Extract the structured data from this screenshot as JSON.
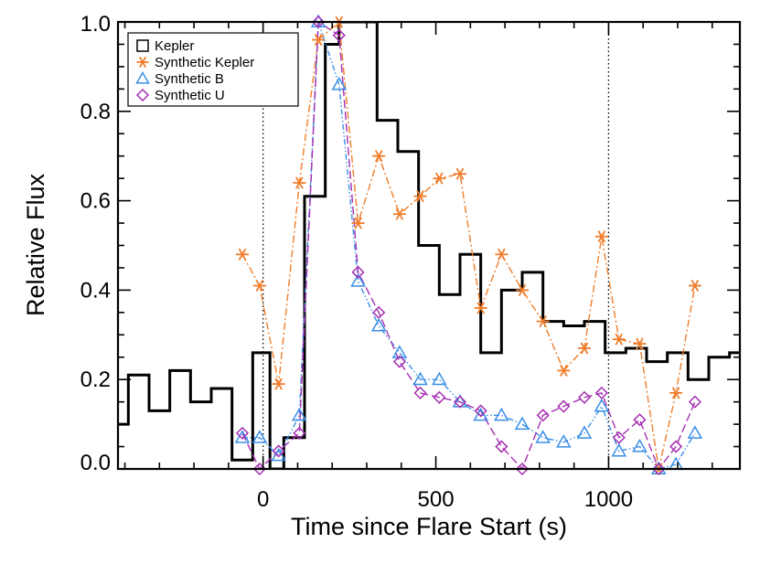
{
  "chart_data": {
    "type": "line",
    "title": "",
    "xlabel": "Time since Flare Start (s)",
    "ylabel": "Relative Flux",
    "xlim": [
      -420,
      1380
    ],
    "ylim": [
      0.0,
      1.0
    ],
    "x_ticks": [
      0,
      500,
      1000
    ],
    "x_tick_labels": [
      "0",
      "500",
      "1000"
    ],
    "y_ticks": [
      0.0,
      0.2,
      0.4,
      0.6,
      0.8,
      1.0
    ],
    "y_tick_labels": [
      "0.0",
      "0.2",
      "0.4",
      "0.6",
      "0.8",
      "1.0"
    ],
    "vertical_reference_lines": [
      0,
      1000
    ],
    "legend_position": "top-left",
    "colors": {
      "kepler": "#000000",
      "synthetic_kepler": "#f07d2a",
      "synthetic_b": "#3a8fe8",
      "synthetic_u": "#a52fb2",
      "reference_line": "#000000"
    },
    "series": [
      {
        "name": "Kepler",
        "style": "step",
        "bin_edges": [
          -420,
          -390,
          -330,
          -270,
          -210,
          -150,
          -90,
          -30,
          0,
          20,
          60,
          120,
          180,
          220,
          270,
          330,
          390,
          450,
          510,
          570,
          630,
          690,
          750,
          810,
          870,
          930,
          990,
          1050,
          1110,
          1170,
          1230,
          1290,
          1350,
          1380
        ],
        "values": [
          0.1,
          0.21,
          0.13,
          0.22,
          0.15,
          0.18,
          0.02,
          0.26,
          0.26,
          0.0,
          0.07,
          0.61,
          0.95,
          1.0,
          1.0,
          0.78,
          0.71,
          0.5,
          0.39,
          0.48,
          0.26,
          0.4,
          0.44,
          0.33,
          0.32,
          0.33,
          0.26,
          0.27,
          0.24,
          0.26,
          0.2,
          0.25,
          0.26
        ]
      },
      {
        "name": "Synthetic Kepler",
        "marker": "asterisk",
        "line": "dash-dot",
        "x": [
          -60,
          -10,
          45,
          105,
          160,
          220,
          275,
          335,
          395,
          455,
          510,
          570,
          630,
          690,
          750,
          810,
          870,
          930,
          980,
          1030,
          1090,
          1145,
          1195,
          1250
        ],
        "values": [
          0.48,
          0.41,
          0.19,
          0.64,
          0.96,
          1.0,
          0.55,
          0.7,
          0.57,
          0.61,
          0.65,
          0.66,
          0.36,
          0.48,
          0.4,
          0.33,
          0.22,
          0.27,
          0.52,
          0.29,
          0.28,
          0.0,
          0.17,
          0.41
        ]
      },
      {
        "name": "Synthetic B",
        "marker": "triangle",
        "line": "dash-dot-dot",
        "x": [
          -60,
          -10,
          45,
          105,
          160,
          220,
          275,
          335,
          395,
          455,
          510,
          570,
          630,
          690,
          750,
          810,
          870,
          930,
          980,
          1030,
          1090,
          1145,
          1195,
          1250
        ],
        "values": [
          0.07,
          0.07,
          0.03,
          0.12,
          1.0,
          0.86,
          0.42,
          0.32,
          0.26,
          0.2,
          0.2,
          0.15,
          0.12,
          0.12,
          0.1,
          0.07,
          0.06,
          0.08,
          0.14,
          0.04,
          0.05,
          0.0,
          0.01,
          0.08
        ]
      },
      {
        "name": "Synthetic U",
        "marker": "diamond",
        "line": "dashed",
        "x": [
          -60,
          -10,
          45,
          105,
          160,
          220,
          275,
          335,
          395,
          455,
          510,
          570,
          630,
          690,
          750,
          810,
          870,
          930,
          980,
          1030,
          1090,
          1145,
          1195,
          1250
        ],
        "values": [
          0.08,
          0.0,
          0.04,
          0.08,
          1.0,
          0.97,
          0.44,
          0.35,
          0.24,
          0.17,
          0.16,
          0.15,
          0.13,
          0.05,
          0.0,
          0.12,
          0.14,
          0.16,
          0.17,
          0.07,
          0.11,
          0.0,
          0.05,
          0.15
        ]
      }
    ]
  }
}
